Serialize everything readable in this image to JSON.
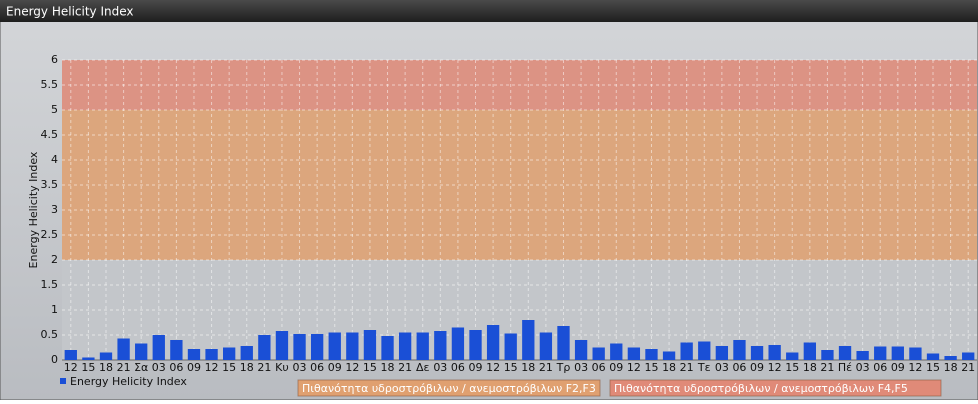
{
  "chart_data": {
    "type": "bar",
    "title": "Energy Helicity Index",
    "y_label": "Energy Helicity Index",
    "categories": [
      "12",
      "15",
      "18",
      "21",
      "Σα",
      "03",
      "06",
      "09",
      "12",
      "15",
      "18",
      "21",
      "Κυ",
      "03",
      "06",
      "09",
      "12",
      "15",
      "18",
      "21",
      "Δε",
      "03",
      "06",
      "09",
      "12",
      "15",
      "18",
      "21",
      "Τρ",
      "03",
      "06",
      "09",
      "12",
      "15",
      "18",
      "21",
      "Τε",
      "03",
      "06",
      "09",
      "12",
      "15",
      "18",
      "21",
      "Πέ",
      "03",
      "06",
      "09",
      "12",
      "15",
      "18",
      "21"
    ],
    "series": [
      {
        "name": "Energy Helicity Index",
        "color": "#1a4fd6",
        "values": [
          0.2,
          0.05,
          0.15,
          0.43,
          0.33,
          0.5,
          0.4,
          0.22,
          0.22,
          0.25,
          0.28,
          0.5,
          0.58,
          0.52,
          0.52,
          0.55,
          0.55,
          0.6,
          0.48,
          0.55,
          0.55,
          0.58,
          0.65,
          0.6,
          0.7,
          0.53,
          0.8,
          0.55,
          0.68,
          0.4,
          0.25,
          0.33,
          0.25,
          0.22,
          0.17,
          0.35,
          0.37,
          0.28,
          0.4,
          0.28,
          0.3,
          0.15,
          0.35,
          0.2,
          0.28,
          0.18,
          0.27,
          0.27,
          0.25,
          0.13,
          0.08,
          0.15
        ]
      }
    ],
    "bands": [
      {
        "from": 2,
        "to": 5,
        "color": "#e0a070",
        "label": "Πιθανότητα υδροστρόβιλων / ανεμοστρόβιλων F2,F3"
      },
      {
        "from": 5,
        "to": 6,
        "color": "#e08a78",
        "label": "Πιθανότητα υδροστρόβιλων / ανεμοστρόβιλων F4,F5"
      }
    ],
    "ylim": [
      0,
      6
    ],
    "yticks": [
      0,
      0.5,
      1,
      1.5,
      2,
      2.5,
      3,
      3.5,
      4,
      4.5,
      5,
      5.5,
      6
    ],
    "grid": true
  }
}
